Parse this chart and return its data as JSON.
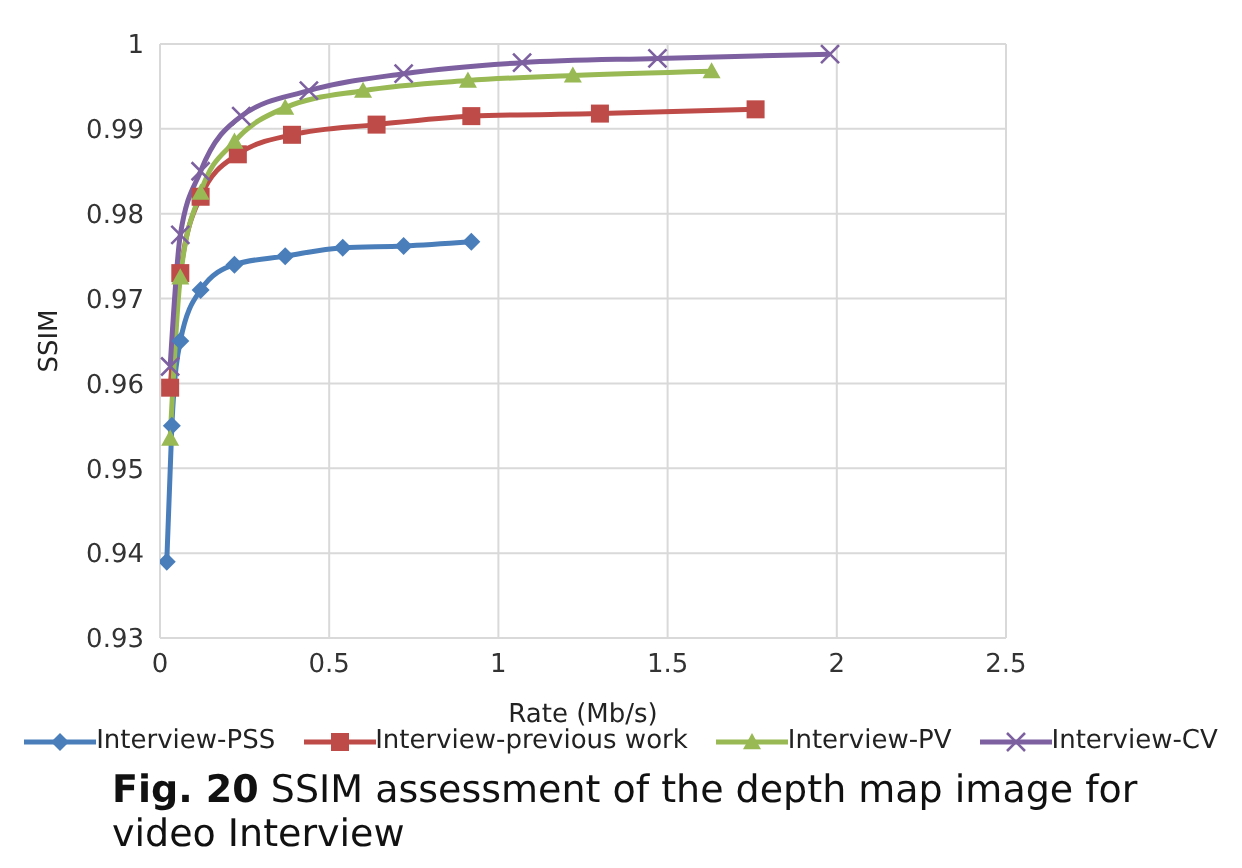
{
  "chart_data": {
    "type": "line",
    "title": "Fig. 20 SSIM assessment of the depth map image for video Interview",
    "xlabel": "Rate (Mb/s)",
    "ylabel": "SSIM",
    "xlim": [
      0,
      2.5
    ],
    "xticks": [
      0,
      0.5,
      1,
      1.5,
      2,
      2.5
    ],
    "ylim": [
      0.93,
      1
    ],
    "yticks": [
      0.93,
      0.94,
      0.95,
      0.96,
      0.97,
      0.98,
      0.99,
      1
    ],
    "grid": true,
    "legend": "bottom",
    "series": [
      {
        "name": "Interview-PSS",
        "color": "#4a7ebb",
        "marker": "diamond",
        "x": [
          0.02,
          0.035,
          0.06,
          0.12,
          0.22,
          0.37,
          0.54,
          0.72,
          0.92
        ],
        "values": [
          0.939,
          0.955,
          0.965,
          0.971,
          0.974,
          0.975,
          0.976,
          0.9762,
          0.9767
        ]
      },
      {
        "name": "Interview-previous work",
        "color": "#be4b48",
        "marker": "square",
        "x": [
          0.03,
          0.06,
          0.12,
          0.23,
          0.39,
          0.64,
          0.92,
          1.3,
          1.76
        ],
        "values": [
          0.9595,
          0.973,
          0.982,
          0.987,
          0.9893,
          0.9905,
          0.9915,
          0.9918,
          0.9923
        ]
      },
      {
        "name": "Interview-PV",
        "color": "#98b954",
        "marker": "triangle",
        "x": [
          0.03,
          0.06,
          0.12,
          0.22,
          0.37,
          0.6,
          0.91,
          1.22,
          1.63
        ],
        "values": [
          0.9535,
          0.9725,
          0.9825,
          0.9885,
          0.9925,
          0.9945,
          0.9957,
          0.9963,
          0.9968
        ]
      },
      {
        "name": "Interview-CV",
        "color": "#7d60a0",
        "marker": "cross",
        "x": [
          0.03,
          0.06,
          0.12,
          0.24,
          0.44,
          0.72,
          1.07,
          1.47,
          1.98
        ],
        "values": [
          0.962,
          0.9775,
          0.985,
          0.9915,
          0.9945,
          0.9965,
          0.9978,
          0.9983,
          0.9988
        ]
      }
    ]
  }
}
